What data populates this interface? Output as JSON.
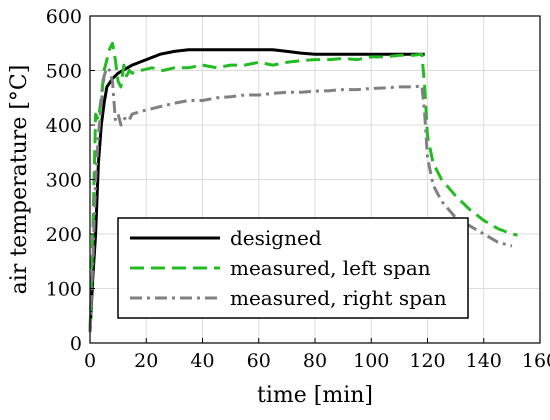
{
  "chart_data": {
    "type": "line",
    "title": "",
    "xlabel": "time [min]",
    "ylabel": "air temperature [°C]",
    "xlim": [
      0,
      160
    ],
    "ylim": [
      0,
      600
    ],
    "xticks": [
      0,
      20,
      40,
      60,
      80,
      100,
      120,
      140,
      160
    ],
    "yticks": [
      0,
      100,
      200,
      300,
      400,
      500,
      600
    ],
    "grid": true,
    "legend_position": "lower-center",
    "series": [
      {
        "name": "designed",
        "color": "#000000",
        "style": "solid",
        "x": [
          0,
          1,
          2,
          3,
          4,
          5,
          6,
          8,
          10,
          15,
          20,
          25,
          30,
          35,
          40,
          50,
          60,
          65,
          70,
          75,
          80,
          90,
          100,
          110,
          119
        ],
        "y": [
          20,
          120,
          200,
          330,
          400,
          440,
          470,
          485,
          495,
          510,
          520,
          530,
          535,
          538,
          538,
          538,
          538,
          538,
          535,
          532,
          530,
          530,
          530,
          530,
          530
        ]
      },
      {
        "name": "measured, left span",
        "color": "#22bb22",
        "style": "dashed",
        "x": [
          0,
          1,
          2,
          3,
          4,
          5,
          6,
          7,
          8,
          9,
          10,
          11,
          12,
          13,
          14,
          15,
          18,
          22,
          26,
          30,
          35,
          40,
          45,
          50,
          55,
          60,
          65,
          70,
          75,
          80,
          85,
          90,
          95,
          100,
          105,
          110,
          115,
          118,
          119,
          120,
          122,
          125,
          130,
          135,
          140,
          145,
          150,
          152
        ],
        "y": [
          20,
          200,
          420,
          410,
          450,
          500,
          520,
          540,
          550,
          520,
          480,
          470,
          510,
          490,
          500,
          495,
          500,
          505,
          500,
          505,
          505,
          510,
          505,
          510,
          510,
          515,
          510,
          515,
          518,
          520,
          520,
          522,
          520,
          525,
          525,
          528,
          528,
          530,
          470,
          380,
          330,
          300,
          270,
          245,
          225,
          210,
          200,
          198
        ]
      },
      {
        "name": "measured, right span",
        "color": "#808080",
        "style": "dashdot",
        "x": [
          0,
          1,
          2,
          3,
          4,
          5,
          6,
          7,
          8,
          9,
          10,
          11,
          12,
          13,
          14,
          15,
          18,
          22,
          26,
          30,
          35,
          40,
          45,
          50,
          55,
          60,
          65,
          70,
          75,
          80,
          85,
          90,
          95,
          100,
          105,
          110,
          115,
          118,
          119,
          120,
          122,
          125,
          130,
          135,
          140,
          145,
          150
        ],
        "y": [
          20,
          150,
          300,
          380,
          440,
          490,
          505,
          500,
          480,
          410,
          420,
          400,
          410,
          415,
          410,
          420,
          425,
          430,
          435,
          440,
          445,
          445,
          450,
          452,
          455,
          455,
          458,
          460,
          460,
          462,
          463,
          465,
          465,
          467,
          468,
          470,
          470,
          472,
          420,
          340,
          290,
          260,
          230,
          215,
          200,
          185,
          178
        ]
      }
    ]
  }
}
